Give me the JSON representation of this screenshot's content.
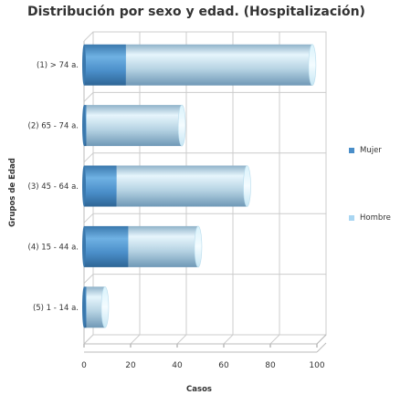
{
  "chart_data": {
    "type": "bar",
    "orientation": "horizontal",
    "stacked": true,
    "title": "Distribución por sexo y edad. (Hospitalización)",
    "xlabel": "Casos",
    "ylabel": "Grupos de Edad",
    "categories": [
      "(1) > 74 a.",
      "(2) 65 - 74 a.",
      "(3) 45 - 64 a.",
      "(4) 15 - 44 a.",
      "(5) 1 - 14 a."
    ],
    "series": [
      {
        "name": "Mujer",
        "values": [
          18,
          1,
          14,
          19,
          1
        ],
        "color": "#4a8ec9"
      },
      {
        "name": "Hombre",
        "values": [
          80,
          41,
          56,
          30,
          8
        ],
        "color": "#a9d6f2"
      }
    ],
    "xlim": [
      0,
      100
    ],
    "xticks": [
      0,
      20,
      40,
      60,
      80,
      100
    ],
    "grid": true,
    "legend_position": "right"
  }
}
